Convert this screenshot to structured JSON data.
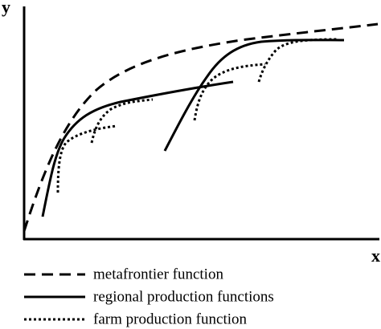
{
  "axes": {
    "y_label": "y",
    "x_label": "x"
  },
  "legend": [
    {
      "label": "metafrontier function"
    },
    {
      "label": "regional production functions"
    },
    {
      "label": "farm production function"
    }
  ]
}
